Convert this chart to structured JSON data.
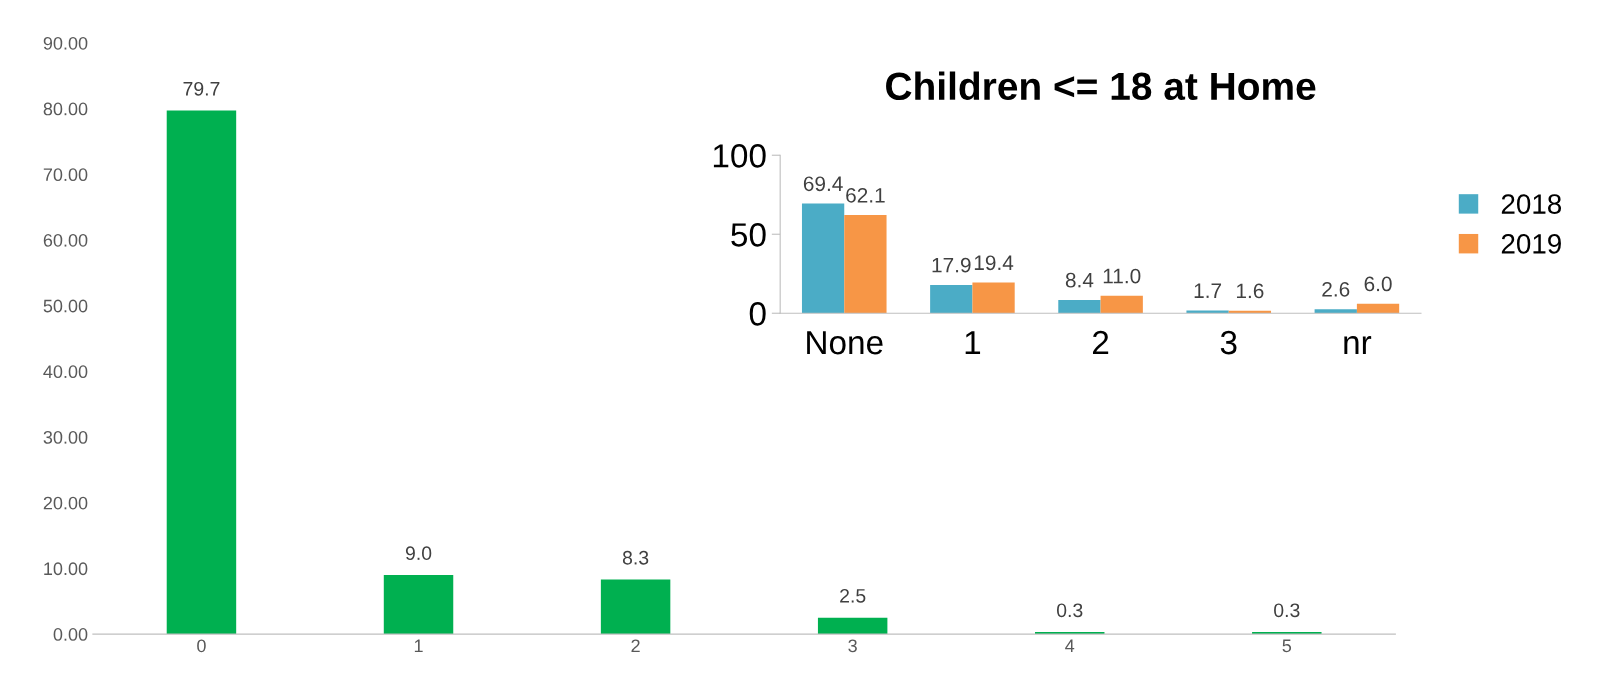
{
  "chart_data": [
    {
      "type": "bar",
      "categories": [
        "0",
        "1",
        "2",
        "3",
        "4",
        "5"
      ],
      "values": [
        79.7,
        9.0,
        8.3,
        2.5,
        0.3,
        0.3
      ],
      "color": "#00b050",
      "value_labels": [
        "79.7",
        "9.0",
        "8.3",
        "2.5",
        "0.3",
        "0.3"
      ],
      "ylim": [
        0,
        90
      ],
      "yticks": [
        {
          "value": 0,
          "label": "0.00"
        },
        {
          "value": 10,
          "label": "10.00"
        },
        {
          "value": 20,
          "label": "20.00"
        },
        {
          "value": 30,
          "label": "30.00"
        },
        {
          "value": 40,
          "label": "40.00"
        },
        {
          "value": 50,
          "label": "50.00"
        },
        {
          "value": 60,
          "label": "60.00"
        },
        {
          "value": 70,
          "label": "70.00"
        },
        {
          "value": 80,
          "label": "80.00"
        },
        {
          "value": 90,
          "label": "90.00"
        }
      ],
      "grid": false,
      "legend": false
    },
    {
      "type": "bar",
      "title": "Children <= 18 at Home",
      "categories": [
        "None",
        "1",
        "2",
        "3",
        "nr"
      ],
      "series": [
        {
          "name": "2018",
          "color": "#4bacc6",
          "values": [
            69.4,
            17.9,
            8.4,
            1.7,
            2.6
          ],
          "value_labels": [
            "69.4",
            "17.9",
            "8.4",
            "1.7",
            "2.6"
          ]
        },
        {
          "name": "2019",
          "color": "#f79646",
          "values": [
            62.1,
            19.4,
            11.0,
            1.6,
            6.0
          ],
          "value_labels": [
            "62.1",
            "19.4",
            "11.0",
            "1.6",
            "6.0"
          ]
        }
      ],
      "ylim": [
        0,
        100
      ],
      "yticks": [
        0,
        50,
        100
      ],
      "grid": false,
      "legend": "right"
    }
  ]
}
